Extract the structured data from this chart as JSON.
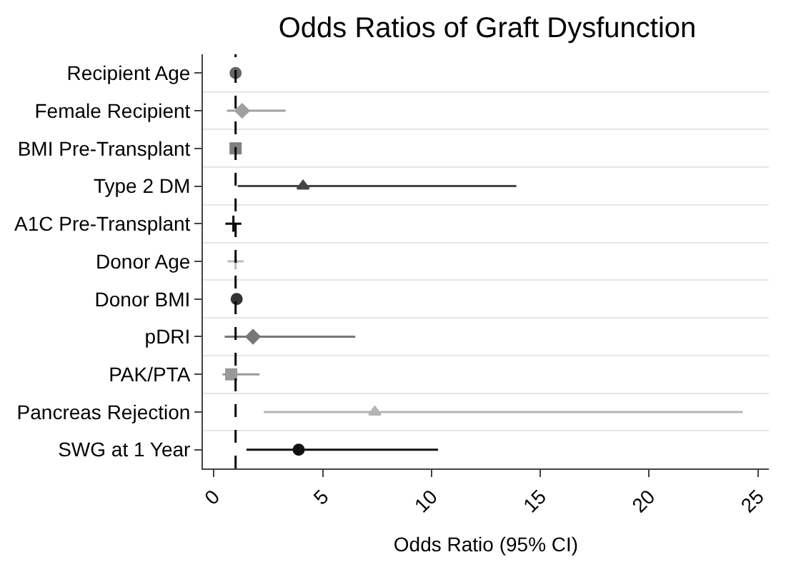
{
  "chart_data": {
    "type": "scatter",
    "orientation": "horizontal",
    "title": "Odds Ratios of Graft Dysfunction",
    "xlabel": "Odds Ratio (95% CI)",
    "categories": [
      "Recipient Age",
      "Female Recipient",
      "BMI Pre-Transplant",
      "Type 2 DM",
      "A1C Pre-Transplant",
      "Donor Age",
      "Donor BMI",
      "pDRI",
      "PAK/PTA",
      "Pancreas Rejection",
      "SWG at 1 Year"
    ],
    "series": [
      {
        "color": "#666666",
        "marker": "circle",
        "values": [
          1.0,
          null,
          null,
          null,
          null,
          null,
          null,
          null,
          null,
          null,
          null
        ]
      },
      {
        "color": "#a0a0a0",
        "marker": "diamond",
        "values": [
          null,
          1.3,
          null,
          null,
          null,
          null,
          null,
          null,
          null,
          null,
          null
        ],
        "errors": [
          null,
          [
            0.6,
            3.3
          ],
          null,
          null,
          null,
          null,
          null,
          null,
          null,
          null,
          null
        ]
      },
      {
        "color": "#808080",
        "marker": "square",
        "values": [
          null,
          null,
          1.0,
          null,
          null,
          null,
          null,
          null,
          null,
          null,
          null
        ]
      },
      {
        "color": "#444444",
        "marker": "triangle",
        "values": [
          null,
          null,
          null,
          4.1,
          null,
          null,
          null,
          null,
          null,
          null,
          null
        ],
        "errors": [
          null,
          null,
          null,
          [
            1.1,
            13.9
          ],
          null,
          null,
          null,
          null,
          null,
          null,
          null
        ]
      },
      {
        "color": "#000000",
        "marker": "cross",
        "values": [
          null,
          null,
          null,
          null,
          0.9,
          null,
          null,
          null,
          null,
          null,
          null
        ]
      },
      {
        "color": "#bbbbbb",
        "marker": "cross",
        "values": [
          null,
          null,
          null,
          null,
          null,
          1.0,
          null,
          null,
          null,
          null,
          null
        ]
      },
      {
        "color": "#333333",
        "marker": "circle",
        "values": [
          null,
          null,
          null,
          null,
          null,
          null,
          1.05,
          null,
          null,
          null,
          null
        ]
      },
      {
        "color": "#777777",
        "marker": "diamond",
        "values": [
          null,
          null,
          null,
          null,
          null,
          null,
          null,
          1.8,
          null,
          null,
          null
        ],
        "errors": [
          null,
          null,
          null,
          null,
          null,
          null,
          null,
          [
            0.5,
            6.5
          ],
          null,
          null,
          null
        ]
      },
      {
        "color": "#999999",
        "marker": "square",
        "values": [
          null,
          null,
          null,
          null,
          null,
          null,
          null,
          null,
          0.8,
          null,
          null
        ],
        "errors": [
          null,
          null,
          null,
          null,
          null,
          null,
          null,
          null,
          [
            0.4,
            2.1
          ],
          null,
          null
        ]
      },
      {
        "color": "#b4b4b4",
        "marker": "triangle",
        "values": [
          null,
          null,
          null,
          null,
          null,
          null,
          null,
          null,
          null,
          7.4,
          null
        ],
        "errors": [
          null,
          null,
          null,
          null,
          null,
          null,
          null,
          null,
          null,
          [
            2.3,
            24.3
          ],
          null
        ]
      },
      {
        "color": "#111111",
        "marker": "circle",
        "values": [
          null,
          null,
          null,
          null,
          null,
          null,
          null,
          null,
          null,
          null,
          3.9
        ],
        "errors": [
          null,
          null,
          null,
          null,
          null,
          null,
          null,
          null,
          null,
          null,
          [
            1.5,
            10.3
          ]
        ]
      }
    ],
    "xlim": [
      -0.5,
      25.5
    ],
    "xticks": [
      0,
      5,
      10,
      15,
      20,
      25
    ],
    "ref_lines": [
      {
        "axis": "x",
        "value": 1,
        "line_style": "dashed",
        "color": "#000000"
      }
    ],
    "grid": "y"
  }
}
